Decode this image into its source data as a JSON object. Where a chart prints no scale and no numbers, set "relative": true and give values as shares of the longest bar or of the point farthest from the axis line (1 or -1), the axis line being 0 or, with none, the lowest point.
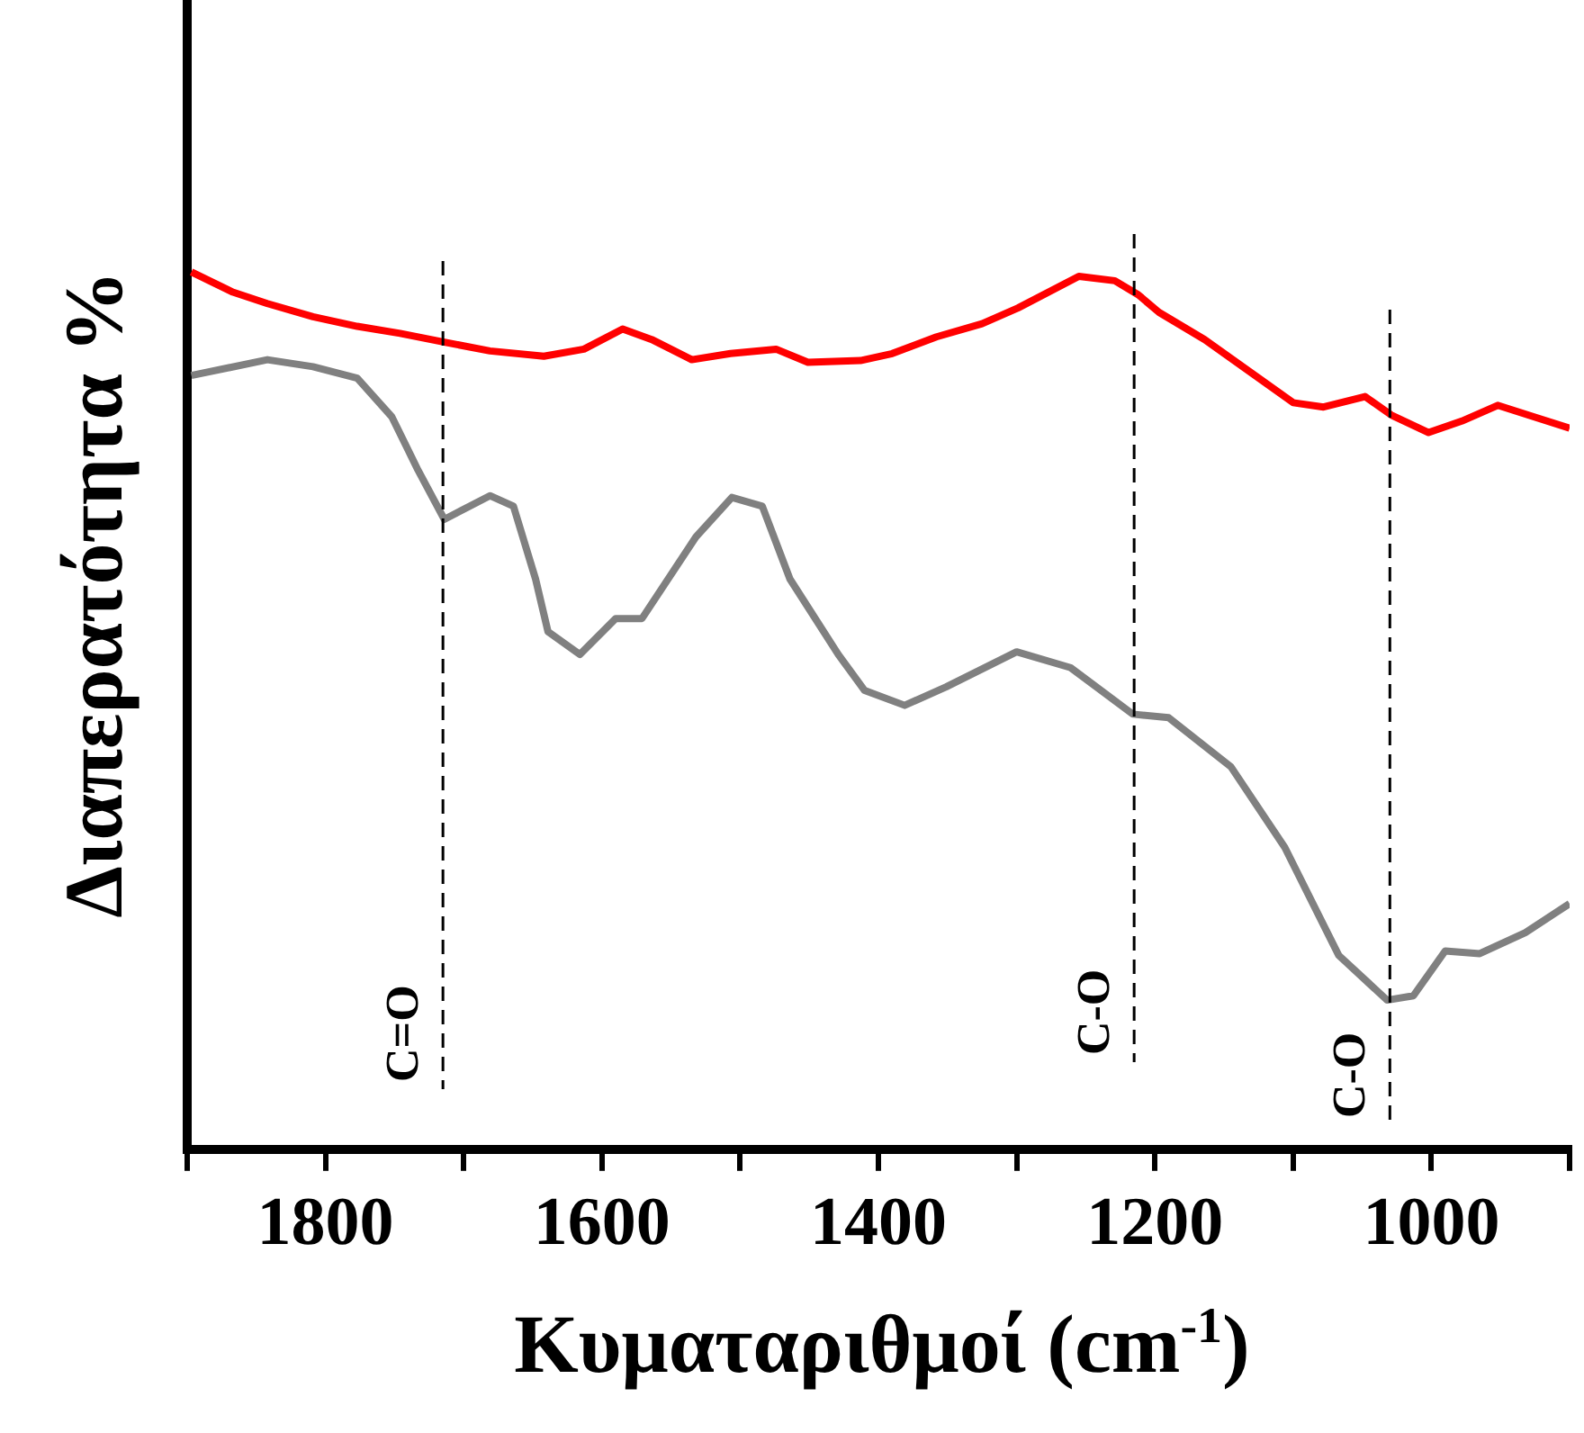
{
  "chart_data": {
    "type": "line",
    "relative": true,
    "xlabel": "Κυματαριθμοί (cm$^{-1}$)",
    "ylabel": "Διαπερατότητα %",
    "xlim": [
      1900,
      900
    ],
    "xticks": [
      1800,
      {
        "value": 1700,
        "label": null
      },
      1600,
      {
        "value": 1500,
        "label": null
      },
      1400,
      {
        "value": 1300,
        "label": null
      },
      1200,
      {
        "value": 1100,
        "label": null
      },
      1000,
      {
        "value": 1900,
        "label": null
      },
      {
        "value": 900,
        "label": null
      }
    ],
    "grid": false,
    "legend": false,
    "marker": "none",
    "line_style": "solid",
    "series": [
      {
        "color": "#ff0000",
        "x": [
          1897,
          1867,
          1842,
          1809,
          1777,
          1746,
          1714,
          1681,
          1642,
          1613,
          1585,
          1564,
          1535,
          1507,
          1474,
          1451,
          1413,
          1390,
          1358,
          1325,
          1299,
          1255,
          1229,
          1212,
          1197,
          1164,
          1132,
          1100,
          1078,
          1048,
          1029,
          1002,
          978,
          952,
          926,
          900
        ],
        "values": [
          1.0,
          0.977,
          0.964,
          0.949,
          0.938,
          0.93,
          0.92,
          0.91,
          0.904,
          0.912,
          0.935,
          0.923,
          0.9,
          0.907,
          0.912,
          0.897,
          0.899,
          0.907,
          0.926,
          0.941,
          0.959,
          0.995,
          0.99,
          0.974,
          0.954,
          0.923,
          0.887,
          0.851,
          0.846,
          0.858,
          0.837,
          0.817,
          0.83,
          0.848,
          0.835,
          0.822
        ]
      },
      {
        "color": "#808080",
        "x": [
          1897,
          1842,
          1809,
          1777,
          1752,
          1733,
          1714,
          1681,
          1664,
          1648,
          1639,
          1616,
          1590,
          1571,
          1532,
          1506,
          1484,
          1464,
          1429,
          1410,
          1381,
          1351,
          1300,
          1261,
          1216,
          1190,
          1145,
          1106,
          1067,
          1032,
          1013,
          990,
          965,
          932,
          900
        ],
        "values": [
          0.882,
          0.9,
          0.892,
          0.879,
          0.835,
          0.774,
          0.718,
          0.745,
          0.733,
          0.65,
          0.59,
          0.564,
          0.605,
          0.605,
          0.698,
          0.743,
          0.733,
          0.65,
          0.564,
          0.523,
          0.506,
          0.527,
          0.567,
          0.549,
          0.496,
          0.492,
          0.436,
          0.344,
          0.221,
          0.17,
          0.175,
          0.226,
          0.223,
          0.247,
          0.28
        ]
      }
    ],
    "ref_lines": [
      {
        "axis": "x",
        "value": 1715,
        "label": "C=O",
        "line_style": "dashed",
        "color": "#000000"
      },
      {
        "axis": "x",
        "value": 1215,
        "label": "C-O",
        "line_style": "dashed",
        "color": "#000000"
      },
      {
        "axis": "x",
        "value": 1030,
        "label": "C-O",
        "line_style": "dashed",
        "color": "#000000"
      }
    ]
  }
}
